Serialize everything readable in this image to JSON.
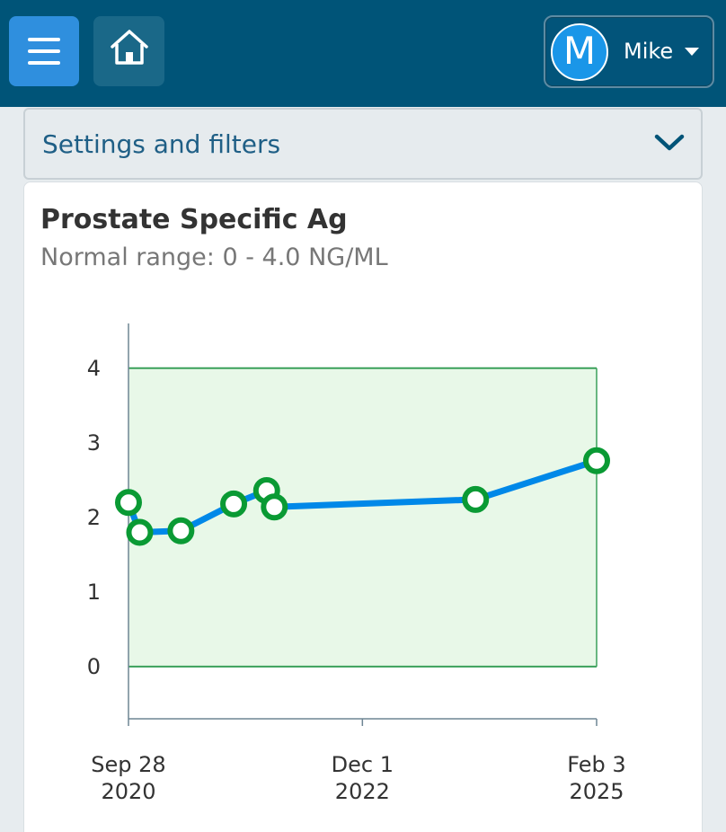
{
  "header": {
    "menu_icon": "hamburger-icon",
    "home_icon": "home-icon",
    "user": {
      "initial": "M",
      "name": "Mike",
      "caret_icon": "caret-down-icon"
    }
  },
  "settings": {
    "label": "Settings and filters",
    "chevron_icon": "chevron-down-icon"
  },
  "card": {
    "title": "Prostate Specific Ag",
    "subtitle": "Normal range: 0 - 4.0 NG/ML"
  },
  "colors": {
    "header_bg": "#005478",
    "menu_button": "#2f8fde",
    "line": "#0088e8",
    "point": "#0a9a34",
    "range_fill": "#e8f8e8",
    "range_border": "#3aa05a"
  },
  "chart_data": {
    "type": "line",
    "title": "Prostate Specific Ag",
    "xlabel": "",
    "ylabel": "",
    "ylim": [
      -0.7,
      4.6
    ],
    "xlim": [
      "2020-09-28",
      "2025-02-03"
    ],
    "y_ticks": [
      0,
      1,
      2,
      3,
      4
    ],
    "x_ticks": [
      {
        "date": "2020-09-28",
        "label_line1": "Sep 28",
        "label_line2": "2020"
      },
      {
        "date": "2022-12-01",
        "label_line1": "Dec 1",
        "label_line2": "2022"
      },
      {
        "date": "2025-02-03",
        "label_line1": "Feb 3",
        "label_line2": "2025"
      }
    ],
    "normal_range": [
      0,
      4.0
    ],
    "grid": false,
    "series": [
      {
        "points": [
          {
            "x": "2020-09-28",
            "y": 2.2
          },
          {
            "x": "2020-11-05",
            "y": 1.8
          },
          {
            "x": "2021-03-25",
            "y": 1.82
          },
          {
            "x": "2021-09-20",
            "y": 2.18
          },
          {
            "x": "2022-01-10",
            "y": 2.36
          },
          {
            "x": "2022-02-05",
            "y": 2.14
          },
          {
            "x": "2023-12-20",
            "y": 2.24
          },
          {
            "x": "2025-02-03",
            "y": 2.76
          }
        ]
      }
    ]
  }
}
